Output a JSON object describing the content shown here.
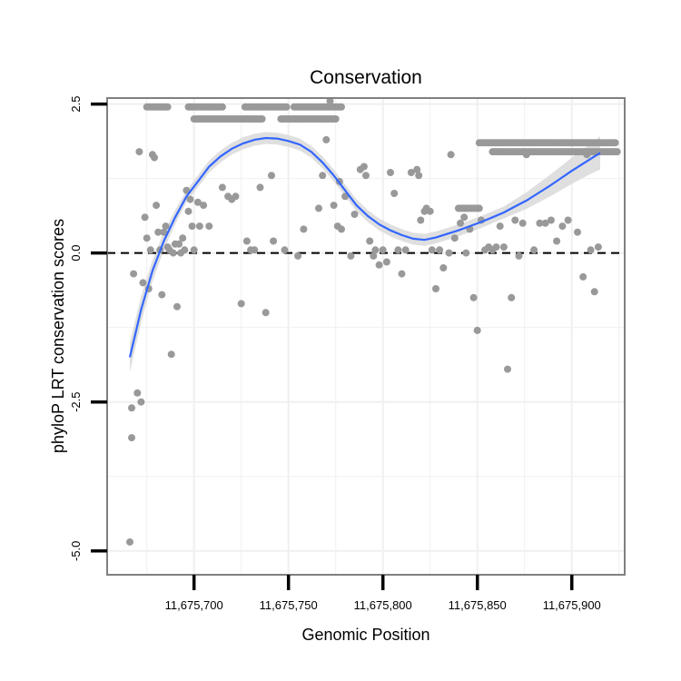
{
  "chart_data": {
    "type": "scatter",
    "title": "Conservation",
    "xlabel": "Genomic Position",
    "ylabel": "phyloP LRT conservation scores",
    "xlim": [
      11675654,
      11675928
    ],
    "ylim": [
      -5.4,
      2.6
    ],
    "x_ticks": [
      11675700,
      11675750,
      11675800,
      11675850,
      11675900
    ],
    "x_tick_labels": [
      "11,675,700",
      "11,675,750",
      "11,675,800",
      "11,675,850",
      "11,675,900"
    ],
    "y_ticks": [
      2.5,
      0.0,
      -2.5,
      -5.0
    ],
    "y_tick_labels": [
      "2.5",
      "0.0",
      "-2.5",
      "-5.0"
    ],
    "reference_line": {
      "y": 0,
      "style": "dashed"
    },
    "colors": {
      "points": "#999999",
      "smooth": "#3366ff",
      "ribbon": "#d9d9d9",
      "panel_border": "#808080",
      "grid": "#f0f0f0"
    },
    "points": {
      "name": "phyloP score",
      "x": [
        11675666,
        11675667,
        11675667,
        11675668,
        11675670,
        11675671,
        11675672,
        11675673,
        11675674,
        11675675,
        11675676,
        11675677,
        11675678,
        11675679,
        11675680,
        11675681,
        11675682,
        11675683,
        11675684,
        11675685,
        11675686,
        11675687,
        11675688,
        11675689,
        11675690,
        11675691,
        11675692,
        11675693,
        11675694,
        11675695,
        11675696,
        11675697,
        11675698,
        11675699,
        11675700,
        11675702,
        11675703,
        11675705,
        11675708,
        11675715,
        11675718,
        11675720,
        11675722,
        11675725,
        11675728,
        11675730,
        11675732,
        11675735,
        11675738,
        11675741,
        11675742,
        11675748,
        11675755,
        11675758,
        11675766,
        11675768,
        11675770,
        11675772,
        11675774,
        11675776,
        11675777,
        11675778,
        11675780,
        11675783,
        11675785,
        11675788,
        11675790,
        11675791,
        11675793,
        11675795,
        11675796,
        11675798,
        11675800,
        11675802,
        11675804,
        11675806,
        11675808,
        11675810,
        11675812,
        11675815,
        11675818,
        11675819,
        11675820,
        11675822,
        11675823,
        11675825,
        11675826,
        11675828,
        11675830,
        11675832,
        11675835,
        11675836,
        11675838,
        11675841,
        11675843,
        11675844,
        11675846,
        11675848,
        11675850,
        11675852,
        11675854,
        11675856,
        11675858,
        11675860,
        11675862,
        11675864,
        11675866,
        11675868,
        11675870,
        11675872,
        11675874,
        11675876,
        11675878,
        11675880,
        11675883,
        11675886,
        11675889,
        11675892,
        11675895,
        11675898,
        11675900,
        11675903,
        11675906,
        11675908,
        11675910,
        11675912,
        11675914
      ],
      "y": [
        -4.85,
        -3.1,
        -2.6,
        -0.35,
        -2.35,
        1.7,
        -2.5,
        -0.5,
        0.6,
        0.25,
        -0.6,
        0.05,
        1.65,
        1.6,
        0.8,
        0.35,
        0.05,
        -0.7,
        0.35,
        0.45,
        0.1,
        0.05,
        -1.7,
        0.0,
        0.15,
        -0.9,
        0.15,
        0.0,
        0.25,
        0.05,
        1.05,
        0.7,
        0.9,
        0.45,
        0.05,
        0.85,
        0.45,
        0.8,
        0.45,
        1.1,
        0.95,
        0.9,
        0.95,
        -0.85,
        0.2,
        0.05,
        0.05,
        1.1,
        -1.0,
        1.3,
        0.2,
        0.05,
        -0.05,
        0.4,
        0.75,
        1.3,
        1.9,
        2.55,
        0.8,
        0.45,
        1.2,
        0.4,
        0.95,
        -0.05,
        0.65,
        1.4,
        1.45,
        1.3,
        0.2,
        -0.05,
        0.05,
        -0.2,
        0.05,
        -0.15,
        1.35,
        1.0,
        0.05,
        -0.35,
        0.05,
        1.35,
        1.4,
        1.3,
        0.55,
        0.7,
        0.75,
        0.7,
        0.05,
        -0.6,
        0.05,
        -0.25,
        0.0,
        1.65,
        0.25,
        0.5,
        0.6,
        0.0,
        0.4,
        -0.75,
        -1.3,
        0.55,
        0.05,
        0.1,
        0.05,
        0.1,
        0.45,
        0.1,
        -1.95,
        -0.75,
        0.55,
        -0.05,
        0.5,
        1.65,
        1.85,
        0.05,
        0.5,
        0.5,
        0.55,
        0.2,
        0.45,
        0.55,
        1.85,
        0.35,
        -0.4,
        1.65,
        0.05,
        -0.65,
        0.1
      ],
      "plateaus": [
        {
          "x_from": 11675675,
          "x_to": 11675686,
          "y": 2.45
        },
        {
          "x_from": 11675697,
          "x_to": 11675715,
          "y": 2.45
        },
        {
          "x_from": 11675700,
          "x_to": 11675736,
          "y": 2.25
        },
        {
          "x_from": 11675727,
          "x_to": 11675749,
          "y": 2.45
        },
        {
          "x_from": 11675746,
          "x_to": 11675775,
          "y": 2.25
        },
        {
          "x_from": 11675753,
          "x_to": 11675778,
          "y": 2.45
        },
        {
          "x_from": 11675840,
          "x_to": 11675851,
          "y": 0.75
        },
        {
          "x_from": 11675851,
          "x_to": 11675923,
          "y": 1.85
        },
        {
          "x_from": 11675858,
          "x_to": 11675924,
          "y": 1.7
        }
      ]
    },
    "smooth": {
      "name": "loess fit",
      "x": [
        11675666,
        11675672,
        11675678,
        11675684,
        11675690,
        11675696,
        11675702,
        11675708,
        11675714,
        11675720,
        11675726,
        11675732,
        11675738,
        11675744,
        11675750,
        11675756,
        11675762,
        11675768,
        11675774,
        11675780,
        11675786,
        11675792,
        11675798,
        11675804,
        11675810,
        11675816,
        11675822,
        11675828,
        11675834,
        11675840,
        11675846,
        11675852,
        11675858,
        11675864,
        11675870,
        11675876,
        11675882,
        11675888,
        11675894,
        11675900,
        11675906,
        11675912,
        11675915
      ],
      "y": [
        -1.75,
        -0.95,
        -0.3,
        0.2,
        0.6,
        0.95,
        1.2,
        1.45,
        1.62,
        1.75,
        1.84,
        1.9,
        1.93,
        1.92,
        1.88,
        1.82,
        1.7,
        1.52,
        1.3,
        1.05,
        0.8,
        0.62,
        0.48,
        0.38,
        0.3,
        0.24,
        0.22,
        0.26,
        0.32,
        0.38,
        0.45,
        0.52,
        0.6,
        0.68,
        0.78,
        0.88,
        1.0,
        1.12,
        1.25,
        1.38,
        1.5,
        1.62,
        1.68
      ],
      "ci_halfwidth": [
        0.25,
        0.22,
        0.18,
        0.15,
        0.12,
        0.1,
        0.1,
        0.1,
        0.1,
        0.1,
        0.1,
        0.1,
        0.1,
        0.1,
        0.1,
        0.1,
        0.1,
        0.1,
        0.1,
        0.1,
        0.1,
        0.1,
        0.1,
        0.1,
        0.1,
        0.1,
        0.1,
        0.1,
        0.1,
        0.1,
        0.1,
        0.1,
        0.1,
        0.1,
        0.12,
        0.14,
        0.16,
        0.18,
        0.2,
        0.22,
        0.24,
        0.26,
        0.28
      ]
    }
  }
}
